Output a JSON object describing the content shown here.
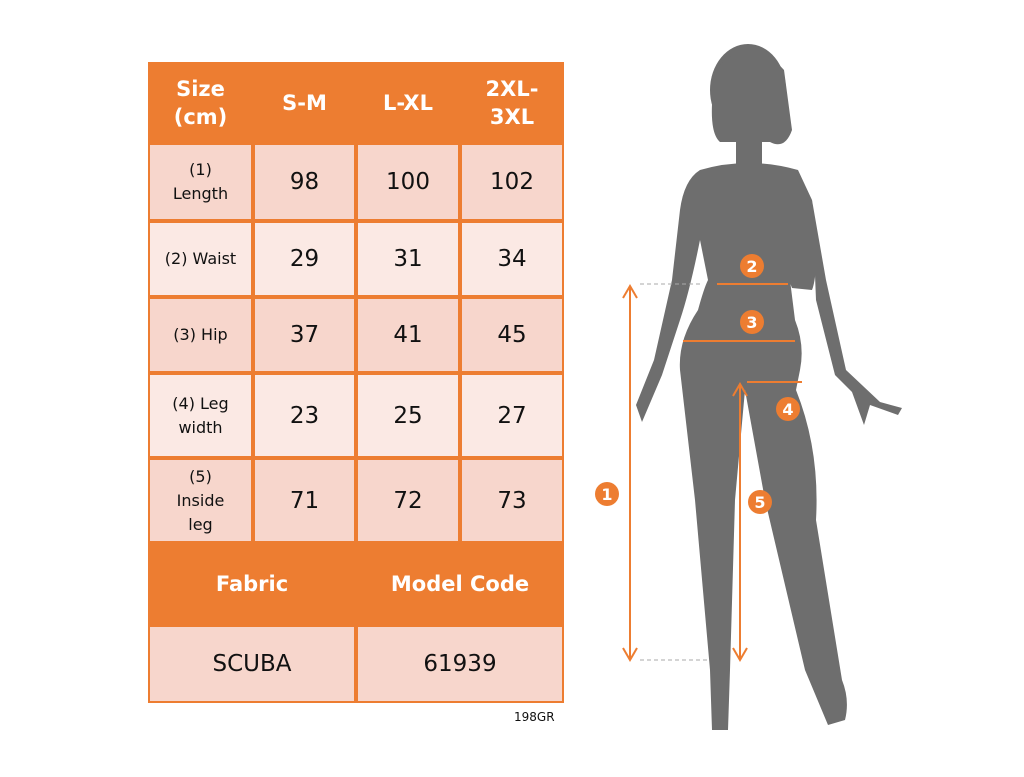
{
  "table": {
    "header": [
      "Size\n(cm)",
      "S-M",
      "L-XL",
      "2XL-\n3XL"
    ],
    "rows": [
      {
        "label": "(1)\nLength",
        "values": [
          "98",
          "100",
          "102"
        ]
      },
      {
        "label": "(2) Waist",
        "values": [
          "29",
          "31",
          "34"
        ]
      },
      {
        "label": "(3) Hip",
        "values": [
          "37",
          "41",
          "45"
        ]
      },
      {
        "label": "(4) Leg\nwidth",
        "values": [
          "23",
          "25",
          "27"
        ]
      },
      {
        "label": "(5)\nInside\nleg",
        "values": [
          "71",
          "72",
          "73"
        ]
      }
    ],
    "footer_headers": [
      "Fabric",
      "Model Code"
    ],
    "footer_values": [
      "SCUBA",
      "61939"
    ]
  },
  "product_code": "198GR",
  "figure": {
    "markers": [
      "1",
      "2",
      "3",
      "4",
      "5"
    ]
  },
  "colors": {
    "accent": "#ED7D31",
    "row_dark": "#F7D6CC",
    "row_light": "#FBE9E4",
    "silhouette": "#6E6E6E"
  }
}
